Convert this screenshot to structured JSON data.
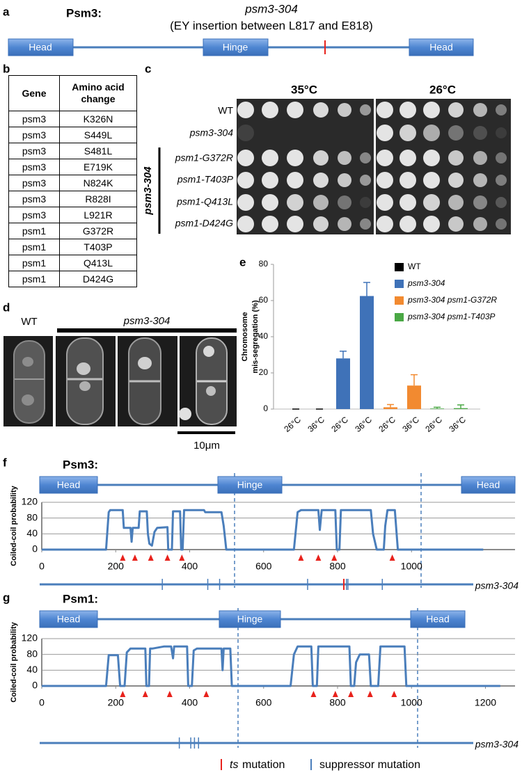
{
  "panels": [
    "a",
    "b",
    "c",
    "d",
    "e",
    "f",
    "g"
  ],
  "a": {
    "protein": "Psm3:",
    "allele": "psm3-304",
    "insertion": "(EY insertion between L817 and E818)",
    "domains": [
      "Head",
      "Hinge",
      "Head"
    ]
  },
  "b": {
    "header": [
      "Gene",
      "Amino acid change"
    ],
    "rows": [
      [
        "psm3",
        "K326N"
      ],
      [
        "psm3",
        "S449L"
      ],
      [
        "psm3",
        "S481L"
      ],
      [
        "psm3",
        "E719K"
      ],
      [
        "psm3",
        "N824K"
      ],
      [
        "psm3",
        "R828I"
      ],
      [
        "psm3",
        "L921R"
      ],
      [
        "psm1",
        "G372R"
      ],
      [
        "psm1",
        "T403P"
      ],
      [
        "psm1",
        "Q413L"
      ],
      [
        "psm1",
        "D424G"
      ]
    ]
  },
  "c": {
    "temperatures": [
      "35°C",
      "26°C"
    ],
    "strains": [
      "WT",
      "psm3-304",
      "psm1-G372R",
      "psm1-T403P",
      "psm1-Q413L",
      "psm1-D424G"
    ],
    "group": "psm3-304"
  },
  "d": {
    "wt": "WT",
    "mutant": "psm3-304",
    "scale_bar": "10μm"
  },
  "chart_data": [
    {
      "type": "bar",
      "ylabel": [
        "Chromosome",
        "mis-segregation (%)"
      ],
      "categories": [
        "26°C",
        "36°C"
      ],
      "series": [
        {
          "name": "WT",
          "color": "#000000",
          "values": [
            0,
            0
          ],
          "errors": [
            0,
            0
          ]
        },
        {
          "name": "psm3-304",
          "color": "#3f72b8",
          "values": [
            28,
            62.5
          ],
          "errors": [
            4,
            7.5
          ]
        },
        {
          "name": "psm3-304 psm1-G372R",
          "color": "#f28a30",
          "values": [
            1,
            13
          ],
          "errors": [
            1.5,
            6
          ]
        },
        {
          "name": "psm3-304 psm1-T403P",
          "color": "#4aa845",
          "values": [
            0.3,
            0.5
          ],
          "errors": [
            0.7,
            1.8
          ]
        }
      ],
      "ylim": [
        0,
        80
      ],
      "yticks": [
        0,
        20,
        40,
        60,
        80
      ]
    },
    {
      "type": "line",
      "title": "Psm3:",
      "domains": [
        "Head",
        "Hinge",
        "Head"
      ],
      "ylabel": "Coiled-coil probability",
      "x": [
        0,
        174,
        181,
        185,
        219,
        222,
        240,
        243,
        246,
        262,
        265,
        284,
        287,
        291,
        298,
        305,
        312,
        340,
        342,
        352,
        355,
        374,
        377,
        381,
        385,
        439,
        442,
        486,
        492,
        499,
        682,
        692,
        701,
        748,
        752,
        757,
        794,
        798,
        805,
        809,
        890,
        896,
        906,
        925,
        929,
        935,
        955,
        963,
        1194
      ],
      "values": [
        0,
        0,
        95,
        100,
        100,
        55,
        55,
        20,
        55,
        55,
        97,
        97,
        40,
        15,
        10,
        45,
        55,
        57,
        0,
        0,
        97,
        97,
        0,
        0,
        100,
        100,
        95,
        95,
        60,
        0,
        0,
        95,
        100,
        100,
        50,
        100,
        100,
        0,
        0,
        100,
        100,
        40,
        0,
        0,
        60,
        100,
        100,
        0,
        0
      ],
      "color": "#4a7ebb",
      "xlim": [
        0,
        1280
      ],
      "xticks": [
        0,
        200,
        400,
        600,
        800,
        1000
      ],
      "ylim": [
        0,
        120
      ],
      "yticks": [
        0,
        40,
        80,
        120
      ],
      "grid": true,
      "arrows": [
        219,
        252,
        295,
        340,
        379,
        701,
        748,
        791,
        948
      ],
      "arrow_color": "#e8221c",
      "ts_mutations": [
        817
      ],
      "suppressor_mutations": [
        326,
        449,
        481,
        719,
        824,
        828,
        921
      ],
      "track_label": "psm3-304"
    },
    {
      "type": "line",
      "title": "Psm1:",
      "domains": [
        "Head",
        "Hinge",
        "Head"
      ],
      "ylabel": "Coiled-coil probability",
      "x": [
        0,
        174,
        181,
        196,
        206,
        212,
        224,
        230,
        240,
        280,
        283,
        290,
        293,
        300,
        330,
        350,
        355,
        358,
        393,
        396,
        406,
        411,
        420,
        486,
        489,
        492,
        510,
        514,
        673,
        682,
        692,
        729,
        733,
        744,
        748,
        832,
        836,
        845,
        850,
        860,
        885,
        890,
        910,
        916,
        981,
        986,
        1240
      ],
      "values": [
        0,
        0,
        78,
        78,
        78,
        0,
        0,
        85,
        95,
        95,
        0,
        0,
        95,
        95,
        100,
        100,
        70,
        100,
        100,
        0,
        0,
        90,
        95,
        95,
        40,
        95,
        95,
        0,
        0,
        80,
        100,
        100,
        0,
        0,
        100,
        100,
        0,
        0,
        60,
        80,
        80,
        0,
        0,
        100,
        100,
        0,
        0
      ],
      "color": "#4a7ebb",
      "xlim": [
        0,
        1280
      ],
      "xticks": [
        0,
        200,
        400,
        600,
        800,
        1000,
        1200
      ],
      "ylim": [
        0,
        120
      ],
      "yticks": [
        0,
        40,
        80,
        120
      ],
      "grid": true,
      "arrows": [
        219,
        280,
        346,
        445,
        735,
        794,
        836,
        888,
        953
      ],
      "arrow_color": "#e8221c",
      "suppressor_mutations": [
        372,
        403,
        413,
        424
      ],
      "track_label": "psm3-304"
    }
  ],
  "legend": {
    "ts": "ts",
    "ts_suffix": "mutation",
    "suppressor": "suppressor mutation"
  }
}
